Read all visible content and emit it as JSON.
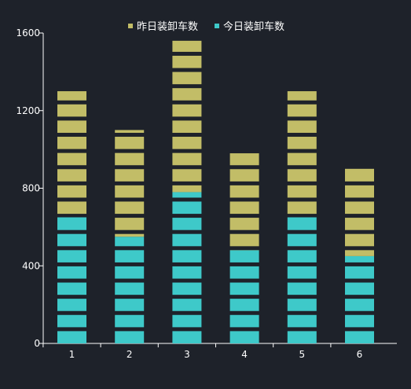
{
  "chart_data": {
    "type": "bar",
    "stacked": true,
    "segmented_bars": true,
    "segment_size": 83.5,
    "categories": [
      "1",
      "2",
      "3",
      "4",
      "5",
      "6"
    ],
    "series": [
      {
        "name": "今日装卸车数",
        "color": "#3ec9c9",
        "values": [
          650,
          550,
          780,
          480,
          650,
          450
        ]
      },
      {
        "name": "昨日装卸车数",
        "color": "#c2bd67",
        "values": [
          650,
          550,
          780,
          500,
          650,
          450
        ]
      }
    ],
    "yticks": [
      0,
      400,
      800,
      1200,
      1600
    ],
    "ylim": [
      0,
      1600
    ],
    "legend_position": "top-center",
    "background": "#1e222a",
    "axis_color": "#ffffff",
    "grid": false
  }
}
